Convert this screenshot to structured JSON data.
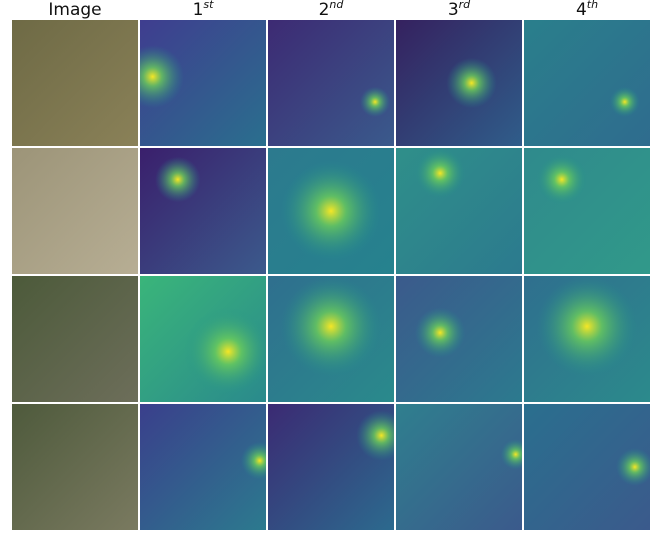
{
  "figure": {
    "columns": [
      {
        "label": "Image"
      },
      {
        "label": "1",
        "superscript": "st"
      },
      {
        "label": "2",
        "superscript": "nd"
      },
      {
        "label": "3",
        "superscript": "rd"
      },
      {
        "label": "4",
        "superscript": "th"
      }
    ]
  }
}
